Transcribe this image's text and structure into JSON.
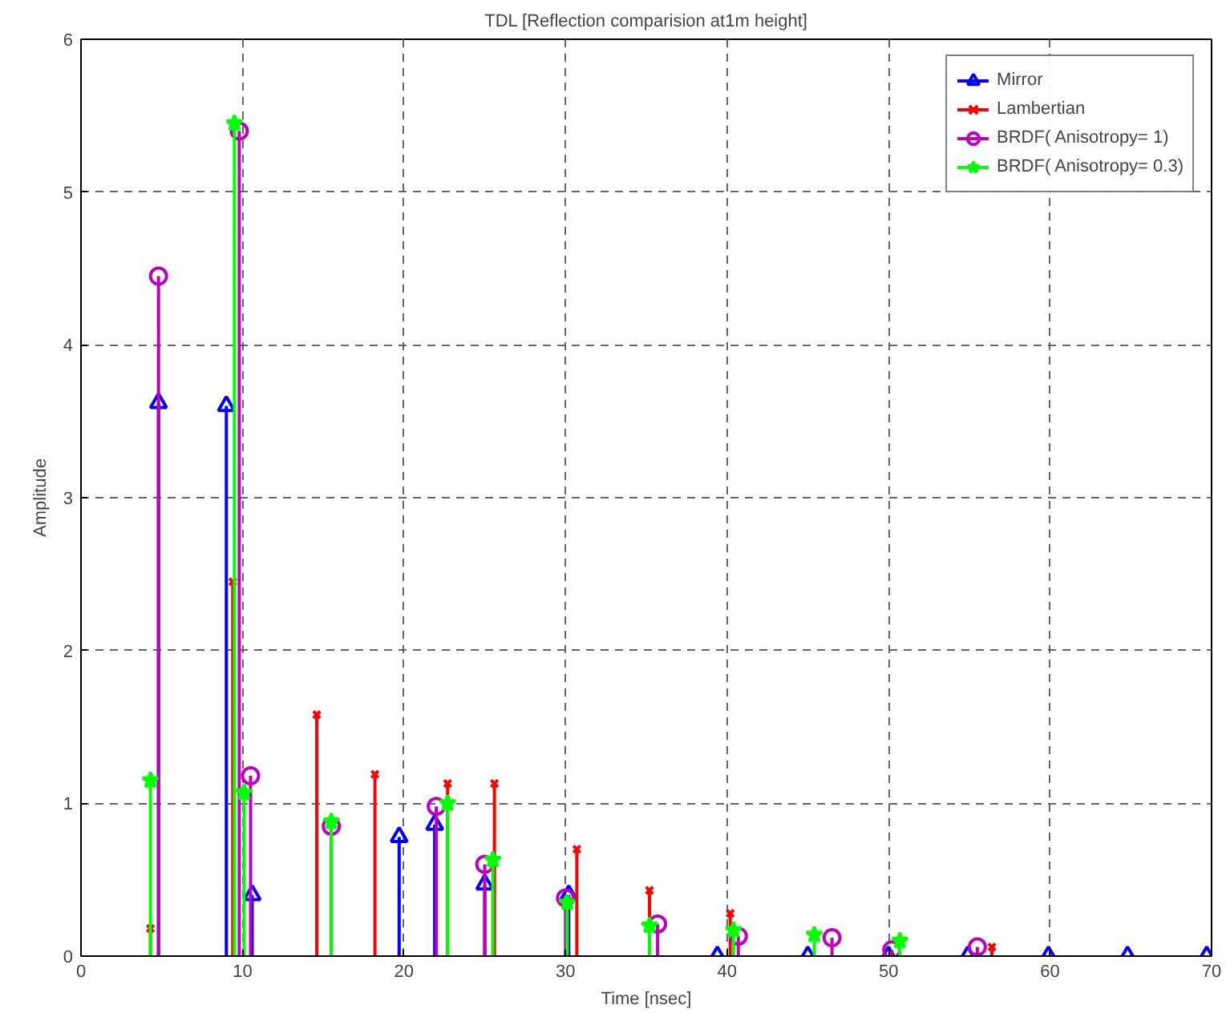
{
  "chart_data": {
    "type": "lollipop",
    "title": "TDL [Reflection comparision at1m height]",
    "xlabel": "Time [nsec]",
    "ylabel": "Amplitude",
    "xlim": [
      0,
      70
    ],
    "ylim": [
      0,
      6
    ],
    "xticks": [
      0,
      10,
      20,
      30,
      40,
      50,
      60,
      70
    ],
    "yticks": [
      0,
      1,
      2,
      3,
      4,
      5,
      6
    ],
    "grid": true,
    "legend": "top right",
    "series": [
      {
        "name": "Mirror",
        "color": "#0000ff",
        "marker": "triangle",
        "x": [
          4.8,
          9.0,
          10.6,
          19.7,
          21.9,
          25.0,
          30.2,
          39.4,
          45.0,
          50.0,
          54.9,
          59.9,
          64.8,
          69.7
        ],
        "values": [
          3.62,
          3.6,
          0.4,
          0.78,
          0.86,
          0.47,
          0.4,
          0,
          0,
          0,
          0,
          0,
          0,
          0
        ]
      },
      {
        "name": "Lambertian",
        "color": "#ff0000",
        "marker": "cross",
        "x": [
          4.3,
          9.4,
          14.6,
          18.2,
          22.7,
          25.6,
          30.7,
          35.2,
          40.2,
          45.3,
          50.4,
          56.4
        ],
        "values": [
          0.18,
          2.45,
          1.58,
          1.19,
          1.13,
          1.13,
          0.7,
          0.43,
          0.28,
          null,
          null,
          0.06
        ]
      },
      {
        "name": "BRDF( Anisotropy= 1)",
        "color": "#bf00bf",
        "marker": "circle",
        "x": [
          4.8,
          9.8,
          10.5,
          15.5,
          22.0,
          25.0,
          30.0,
          35.7,
          40.7,
          46.5,
          50.2,
          55.5
        ],
        "values": [
          4.45,
          5.4,
          1.18,
          0.85,
          0.98,
          0.6,
          0.38,
          0.21,
          0.13,
          0.12,
          0.04,
          0.06
        ]
      },
      {
        "name": "BRDF( Anisotropy= 0.3)",
        "color": "#00ff00",
        "marker": "star",
        "x": [
          4.3,
          9.5,
          10.1,
          15.5,
          22.7,
          25.5,
          30.1,
          35.2,
          40.4,
          45.4,
          50.7
        ],
        "values": [
          1.15,
          5.45,
          1.07,
          0.88,
          1.0,
          0.63,
          0.35,
          0.2,
          0.17,
          0.14,
          0.1
        ]
      }
    ]
  }
}
